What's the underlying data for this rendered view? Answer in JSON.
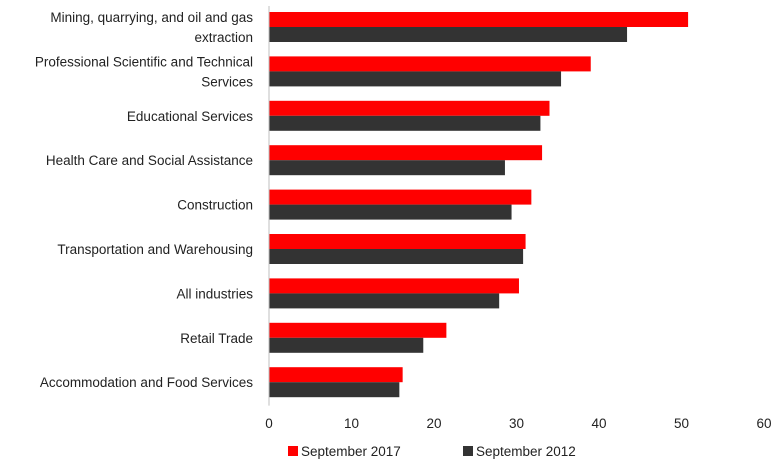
{
  "chart_data": {
    "type": "bar",
    "orientation": "horizontal",
    "categories": [
      "Mining, quarrying, and oil and gas extraction",
      "Professional Scientific and Technical Services",
      "Educational Services",
      "Health Care and Social Assistance",
      "Construction",
      "Transportation and Warehousing",
      "All industries",
      "Retail Trade",
      "Accommodation and Food Services"
    ],
    "category_lines": [
      [
        "Mining, quarrying, and oil and gas",
        "extraction"
      ],
      [
        "Professional Scientific and Technical",
        "Services"
      ],
      [
        "Educational Services"
      ],
      [
        "Health Care and Social Assistance"
      ],
      [
        "Construction"
      ],
      [
        "Transportation and Warehousing"
      ],
      [
        "All industries"
      ],
      [
        "Retail Trade"
      ],
      [
        "Accommodation and Food Services"
      ]
    ],
    "series": [
      {
        "name": "September 2017",
        "color": "#ff0000",
        "values": [
          50.8,
          39.0,
          34.0,
          33.1,
          31.8,
          31.1,
          30.3,
          21.5,
          16.2
        ]
      },
      {
        "name": "September 2012",
        "color": "#333333",
        "values": [
          43.4,
          35.4,
          32.9,
          28.6,
          29.4,
          30.8,
          27.9,
          18.7,
          15.8
        ]
      }
    ],
    "xlim": [
      0,
      60
    ],
    "xticks": [
      "0",
      "10",
      "20",
      "30",
      "40",
      "50",
      "60"
    ],
    "grid": false,
    "legend_position": "bottom"
  }
}
